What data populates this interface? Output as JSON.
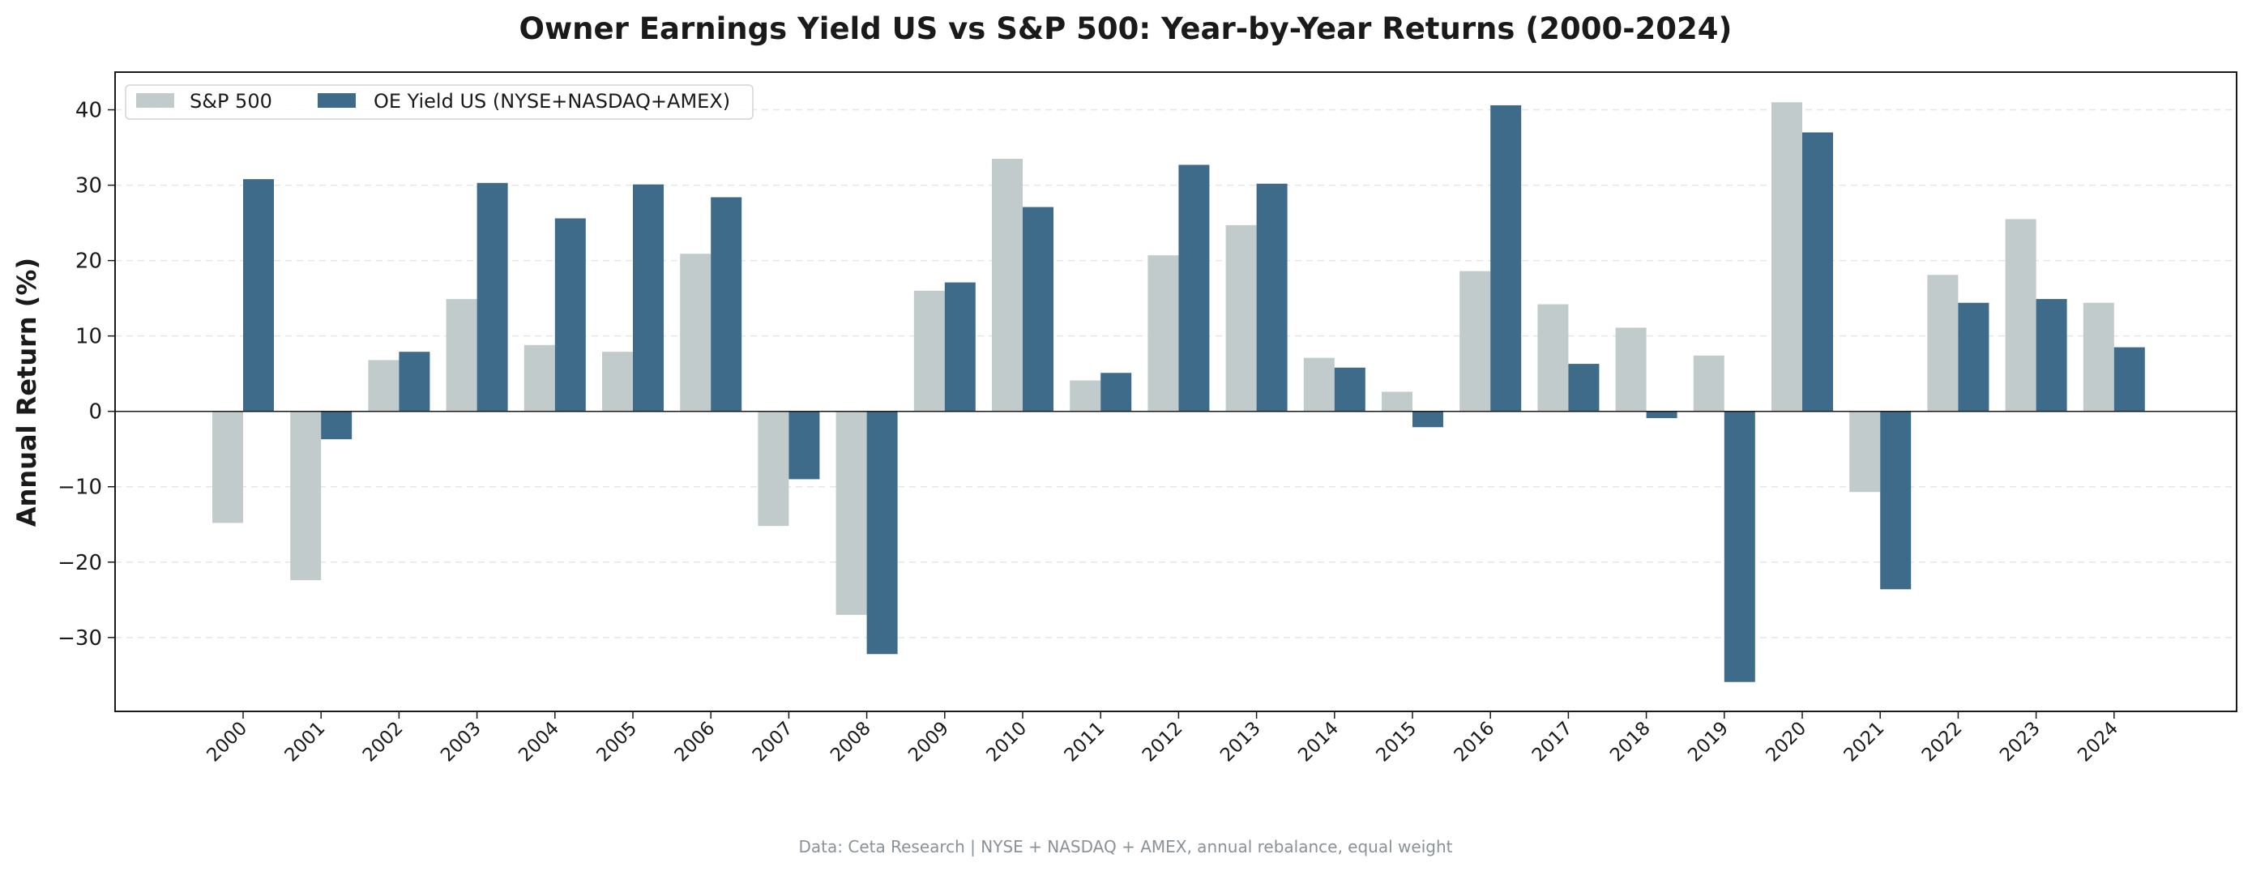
{
  "chart_data": {
    "type": "bar",
    "title": "Owner Earnings Yield US vs S&P 500: Year-by-Year Returns (2000-2024)",
    "xlabel": "",
    "ylabel": "Annual Return (%)",
    "ylim": [
      -39.8,
      45
    ],
    "yticks": [
      -30,
      -20,
      -10,
      0,
      10,
      20,
      30,
      40
    ],
    "ytick_labels": [
      "−30",
      "−20",
      "−10",
      "0",
      "10",
      "20",
      "30",
      "40"
    ],
    "grid": "y, dashed",
    "legend": "top-left",
    "categories": [
      "2000",
      "2001",
      "2002",
      "2003",
      "2004",
      "2005",
      "2006",
      "2007",
      "2008",
      "2009",
      "2010",
      "2011",
      "2012",
      "2013",
      "2014",
      "2015",
      "2016",
      "2017",
      "2018",
      "2019",
      "2020",
      "2021",
      "2022",
      "2023",
      "2024"
    ],
    "series": [
      {
        "name": "S&P 500",
        "color": "#c2cbcc",
        "values": [
          -14.8,
          -22.4,
          6.8,
          14.9,
          8.8,
          7.9,
          20.9,
          -15.2,
          -27.0,
          16.0,
          33.5,
          4.1,
          20.7,
          24.7,
          7.1,
          2.6,
          18.6,
          14.2,
          11.1,
          7.4,
          41.0,
          -10.7,
          18.1,
          25.5,
          14.4
        ]
      },
      {
        "name": "OE Yield US (NYSE+NASDAQ+AMEX)",
        "color": "#3e6b8a",
        "values": [
          30.8,
          -3.7,
          7.9,
          30.3,
          25.6,
          30.1,
          28.4,
          -9.0,
          -32.2,
          17.1,
          27.1,
          5.1,
          32.7,
          30.2,
          5.8,
          -2.1,
          40.6,
          6.3,
          -0.9,
          -35.9,
          37.0,
          -23.6,
          14.4,
          14.9,
          8.5
        ]
      }
    ],
    "footnote": "Data: Ceta Research | NYSE + NASDAQ + AMEX, annual rebalance, equal weight"
  }
}
